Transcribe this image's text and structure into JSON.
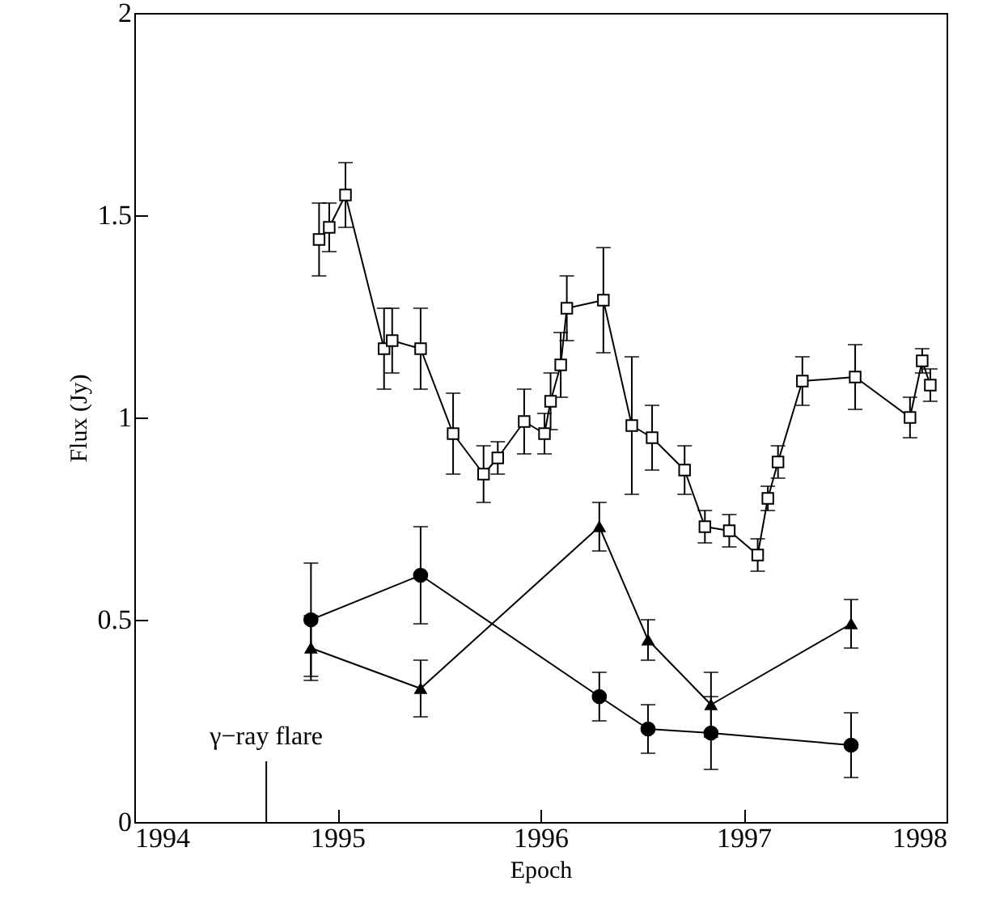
{
  "chart_data": {
    "type": "line",
    "xlabel": "Epoch",
    "ylabel": "Flux (Jy)",
    "xlim": [
      1994,
      1998
    ],
    "xticks": [
      1994,
      1995,
      1996,
      1997,
      1998
    ],
    "ylim": [
      0,
      2
    ],
    "yticks": [
      0,
      0.5,
      1,
      1.5,
      2
    ],
    "grid": false,
    "line_style": "solid",
    "ref_lines": [
      {
        "axis": "x",
        "value": 1994.65,
        "label": "γ−ray flare",
        "color": "#000000"
      }
    ],
    "series": [
      {
        "color": "#000000",
        "marker": "square",
        "x": [
          1994.91,
          1994.96,
          1995.04,
          1995.23,
          1995.27,
          1995.41,
          1995.57,
          1995.72,
          1995.79,
          1995.92,
          1996.02,
          1996.05,
          1996.1,
          1996.13,
          1996.31,
          1996.45,
          1996.55,
          1996.71,
          1996.81,
          1996.93,
          1997.07,
          1997.12,
          1997.17,
          1997.29,
          1997.55,
          1997.82,
          1997.88,
          1997.92
        ],
        "values": [
          1.44,
          1.47,
          1.55,
          1.17,
          1.19,
          1.17,
          0.96,
          0.86,
          0.9,
          0.99,
          0.96,
          1.04,
          1.13,
          1.27,
          1.29,
          0.98,
          0.95,
          0.87,
          0.73,
          0.72,
          0.66,
          0.8,
          0.89,
          1.09,
          1.1,
          1.0,
          1.14,
          1.08
        ],
        "errors": [
          0.09,
          0.06,
          0.08,
          0.1,
          0.08,
          0.1,
          0.1,
          0.07,
          0.04,
          0.08,
          0.05,
          0.07,
          0.08,
          0.08,
          0.13,
          0.17,
          0.08,
          0.06,
          0.04,
          0.04,
          0.04,
          0.03,
          0.04,
          0.06,
          0.08,
          0.05,
          0.03,
          0.04
        ]
      },
      {
        "color": "#000000",
        "marker": "circle",
        "x": [
          1994.87,
          1995.41,
          1996.29,
          1996.53,
          1996.84,
          1997.53
        ],
        "values": [
          0.5,
          0.61,
          0.31,
          0.23,
          0.22,
          0.19
        ],
        "errors": [
          0.14,
          0.12,
          0.06,
          0.06,
          0.09,
          0.08
        ]
      },
      {
        "color": "#000000",
        "marker": "triangle",
        "x": [
          1994.87,
          1995.41,
          1996.29,
          1996.53,
          1996.84,
          1997.53
        ],
        "values": [
          0.43,
          0.33,
          0.73,
          0.45,
          0.29,
          0.49
        ],
        "errors": [
          0.08,
          0.07,
          0.06,
          0.05,
          0.08,
          0.06
        ]
      }
    ]
  }
}
